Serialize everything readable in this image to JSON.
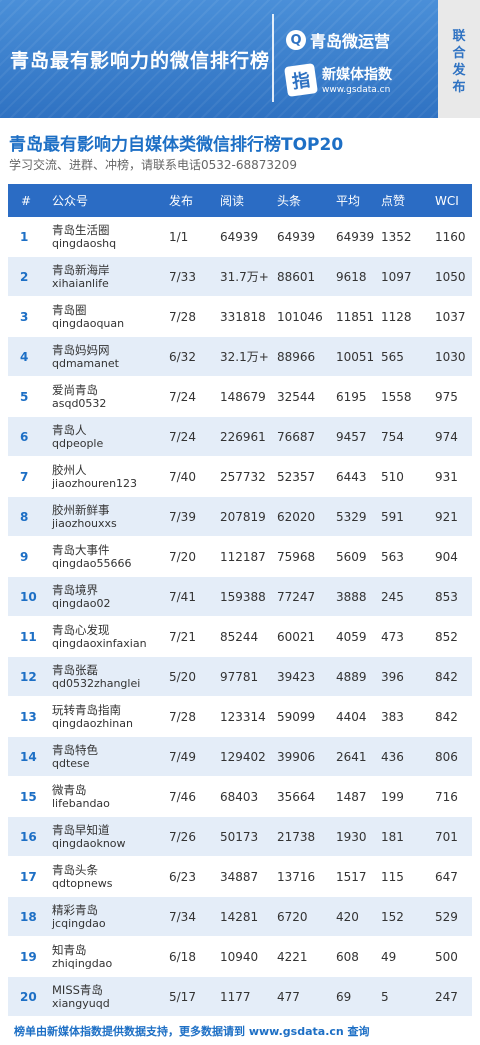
{
  "banner": {
    "title": "青岛最有影响力的微信排行榜",
    "brand1": "青岛微运营",
    "brand2": "新媒体指数",
    "brand2_url": "www.gsdata.cn",
    "side_tag": [
      "联",
      "合",
      "发",
      "布"
    ]
  },
  "main_title": "青岛最有影响力自媒体类微信排行榜TOP20",
  "subtitle": "学习交流、进群、冲榜，请联系电话0532-68873209",
  "headers": {
    "rank": "#",
    "name": "公众号",
    "publish": "发布",
    "read": "阅读",
    "headline": "头条",
    "avg": "平均",
    "likes": "点赞",
    "wci": "WCI"
  },
  "rows": [
    {
      "rank": "1",
      "name": "青岛生活圈",
      "id": "qingdaoshq",
      "publish": "1/1",
      "read": "64939",
      "headline": "64939",
      "avg": "64939",
      "likes": "1352",
      "wci": "1160"
    },
    {
      "rank": "2",
      "name": "青岛新海岸",
      "id": "xihaianlife",
      "publish": "7/33",
      "read": "31.7万+",
      "headline": "88601",
      "avg": "9618",
      "likes": "1097",
      "wci": "1050"
    },
    {
      "rank": "3",
      "name": "青岛圈",
      "id": "qingdaoquan",
      "publish": "7/28",
      "read": "331818",
      "headline": "101046",
      "avg": "11851",
      "likes": "1128",
      "wci": "1037"
    },
    {
      "rank": "4",
      "name": "青岛妈妈网",
      "id": "qdmamanet",
      "publish": "6/32",
      "read": "32.1万+",
      "headline": "88966",
      "avg": "10051",
      "likes": "565",
      "wci": "1030"
    },
    {
      "rank": "5",
      "name": "爱尚青岛",
      "id": "asqd0532",
      "publish": "7/24",
      "read": "148679",
      "headline": "32544",
      "avg": "6195",
      "likes": "1558",
      "wci": "975"
    },
    {
      "rank": "6",
      "name": "青岛人",
      "id": "qdpeople",
      "publish": "7/24",
      "read": "226961",
      "headline": "76687",
      "avg": "9457",
      "likes": "754",
      "wci": "974"
    },
    {
      "rank": "7",
      "name": "胶州人",
      "id": "jiaozhouren123",
      "publish": "7/40",
      "read": "257732",
      "headline": "52357",
      "avg": "6443",
      "likes": "510",
      "wci": "931"
    },
    {
      "rank": "8",
      "name": "胶州新鲜事",
      "id": "jiaozhouxxs",
      "publish": "7/39",
      "read": "207819",
      "headline": "62020",
      "avg": "5329",
      "likes": "591",
      "wci": "921"
    },
    {
      "rank": "9",
      "name": "青岛大事件",
      "id": "qingdao55666",
      "publish": "7/20",
      "read": "112187",
      "headline": "75968",
      "avg": "5609",
      "likes": "563",
      "wci": "904"
    },
    {
      "rank": "10",
      "name": "青岛境界",
      "id": "qingdao02",
      "publish": "7/41",
      "read": "159388",
      "headline": "77247",
      "avg": "3888",
      "likes": "245",
      "wci": "853"
    },
    {
      "rank": "11",
      "name": "青岛心发现",
      "id": "qingdaoxinfaxian",
      "publish": "7/21",
      "read": "85244",
      "headline": "60021",
      "avg": "4059",
      "likes": "473",
      "wci": "852"
    },
    {
      "rank": "12",
      "name": "青岛张磊",
      "id": "qd0532zhanglei",
      "publish": "5/20",
      "read": "97781",
      "headline": "39423",
      "avg": "4889",
      "likes": "396",
      "wci": "842"
    },
    {
      "rank": "13",
      "name": "玩转青岛指南",
      "id": "qingdaozhinan",
      "publish": "7/28",
      "read": "123314",
      "headline": "59099",
      "avg": "4404",
      "likes": "383",
      "wci": "842"
    },
    {
      "rank": "14",
      "name": "青岛特色",
      "id": "qdtese",
      "publish": "7/49",
      "read": "129402",
      "headline": "39906",
      "avg": "2641",
      "likes": "436",
      "wci": "806"
    },
    {
      "rank": "15",
      "name": "微青岛",
      "id": "lifebandao",
      "publish": "7/46",
      "read": "68403",
      "headline": "35664",
      "avg": "1487",
      "likes": "199",
      "wci": "716"
    },
    {
      "rank": "16",
      "name": "青岛早知道",
      "id": "qingdaoknow",
      "publish": "7/26",
      "read": "50173",
      "headline": "21738",
      "avg": "1930",
      "likes": "181",
      "wci": "701"
    },
    {
      "rank": "17",
      "name": "青岛头条",
      "id": "qdtopnews",
      "publish": "6/23",
      "read": "34887",
      "headline": "13716",
      "avg": "1517",
      "likes": "115",
      "wci": "647"
    },
    {
      "rank": "18",
      "name": "精彩青岛",
      "id": "jcqingdao",
      "publish": "7/34",
      "read": "14281",
      "headline": "6720",
      "avg": "420",
      "likes": "152",
      "wci": "529"
    },
    {
      "rank": "19",
      "name": "知青岛",
      "id": "zhiqingdao",
      "publish": "6/18",
      "read": "10940",
      "headline": "4221",
      "avg": "608",
      "likes": "49",
      "wci": "500"
    },
    {
      "rank": "20",
      "name": "MISS青岛",
      "id": "xiangyuqd",
      "publish": "5/17",
      "read": "1177",
      "headline": "477",
      "avg": "69",
      "likes": "5",
      "wci": "247"
    }
  ],
  "footer": "榜单由新媒体指数提供数据支持，更多数据请到 www.gsdata.cn 查询",
  "colors": {
    "header_blue": "#2b6cc4",
    "title_blue": "#1d6fc5",
    "row_alt": "#e4edf8"
  }
}
